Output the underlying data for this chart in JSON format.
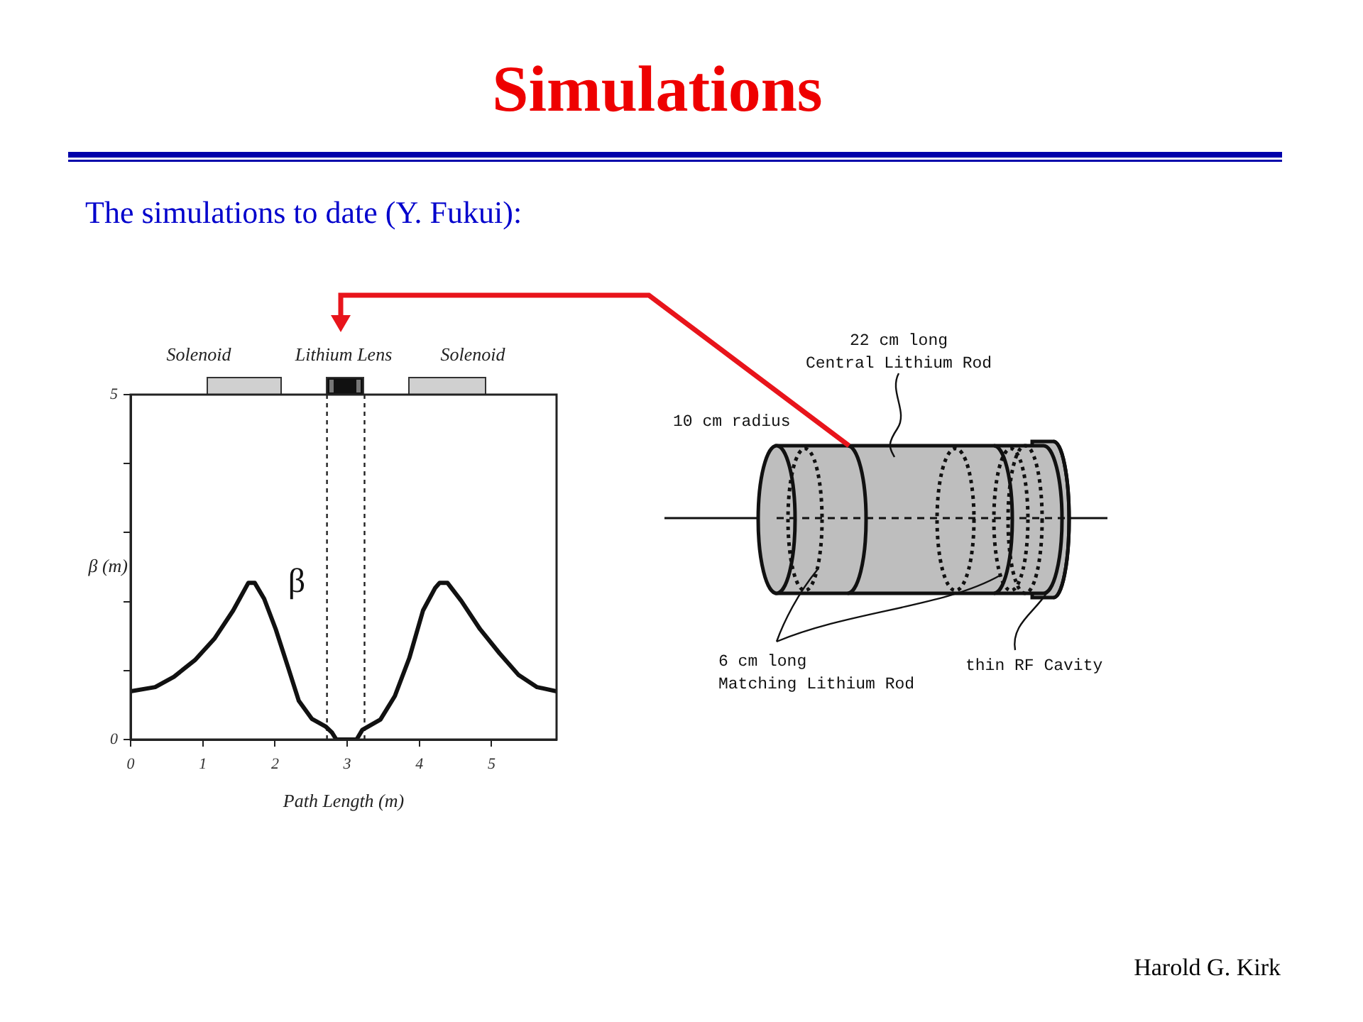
{
  "chart_data": {
    "type": "line",
    "title": "Simulations",
    "subtitle": "The simulations to date (Y. Fukui):",
    "xlabel": "Path Length (m)",
    "ylabel": "β (m)",
    "x": [
      0,
      0.34,
      0.6,
      0.89,
      1.16,
      1.42,
      1.63,
      1.72,
      1.85,
      2.01,
      2.18,
      2.33,
      2.51,
      2.7,
      2.79,
      2.85,
      3.13,
      3.21,
      3.46,
      3.66,
      3.86,
      4.05,
      4.22,
      4.28,
      4.39,
      4.58,
      4.84,
      5.11,
      5.37,
      5.63,
      5.9
    ],
    "series": [
      {
        "name": "β",
        "color": "#111111",
        "values": [
          0.7,
          0.76,
          0.91,
          1.15,
          1.46,
          1.87,
          2.27,
          2.27,
          2.04,
          1.6,
          1.05,
          0.56,
          0.3,
          0.19,
          0.1,
          0,
          0,
          0.14,
          0.29,
          0.63,
          1.18,
          1.87,
          2.2,
          2.27,
          2.27,
          2.01,
          1.6,
          1.25,
          0.94,
          0.76,
          0.7
        ]
      }
    ],
    "xlim": [
      0,
      5.9
    ],
    "xticks": [
      0,
      1,
      2,
      3,
      4,
      5
    ],
    "ylim": [
      0,
      5
    ],
    "yticks": [
      0,
      {
        "value": 1,
        "label": null
      },
      {
        "value": 2,
        "label": null
      },
      {
        "value": 3,
        "label": null
      },
      {
        "value": 4,
        "label": null
      },
      5
    ],
    "marker": "none",
    "legend": false,
    "ref_lines": [
      {
        "axis": "x",
        "value": 2.72,
        "line_style": "dashed",
        "color": "#222222"
      },
      {
        "axis": "x",
        "value": 3.24,
        "line_style": "dashed",
        "color": "#222222"
      }
    ],
    "annotations": [
      "Solenoid",
      "Lithium Lens",
      "Solenoid",
      "22 cm long\nCentral Lithium Rod",
      "10 cm radius",
      "6 cm long\nMatching Lithium Rod",
      "thin RF Cavity",
      "Harold G. Kirk"
    ]
  }
}
